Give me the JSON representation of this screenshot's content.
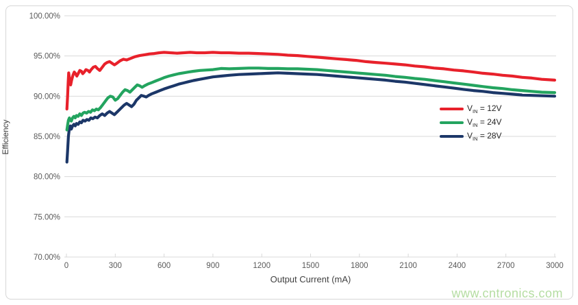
{
  "watermark": {
    "text": "www.cntronics.com",
    "color": "#b5dda2"
  },
  "colors": {
    "background": "#ffffff",
    "card_border": "#d6d6d6",
    "gridline": "#d9d9d9",
    "axis_text": "#595959",
    "title_text": "#404040",
    "legend_text": "#262626",
    "series_red": "#e8212b",
    "series_green": "#23a45f",
    "series_navy": "#1c3768"
  },
  "chart_data": {
    "type": "line",
    "title": "",
    "xlabel": "Output Current (mA)",
    "ylabel": "Efficiency",
    "xlim": [
      0,
      3000
    ],
    "ylim": [
      70,
      100
    ],
    "x_ticks": [
      0,
      300,
      600,
      900,
      1200,
      1500,
      1800,
      2100,
      2400,
      2700,
      3000
    ],
    "x_tick_labels": [
      "0",
      "300",
      "600",
      "900",
      "1200",
      "1500",
      "1800",
      "2100",
      "2400",
      "2700",
      "3000"
    ],
    "y_ticks": [
      70,
      75,
      80,
      85,
      90,
      95,
      100
    ],
    "y_tick_labels": [
      "70.00%",
      "75.00%",
      "80.00%",
      "85.00%",
      "90.00%",
      "95.00%",
      "100.00%"
    ],
    "grid": "horizontal-only",
    "legend_position": "inside-right-middle",
    "series": [
      {
        "id": "vin-12v",
        "legend_label": "VIN = 12V",
        "label_main": "V",
        "label_sub": "IN",
        "label_rest": " = 12V",
        "color": "#e8212b",
        "points": [
          [
            3,
            88.4
          ],
          [
            7,
            90.0
          ],
          [
            11,
            91.8
          ],
          [
            14,
            92.9
          ],
          [
            18,
            92.3
          ],
          [
            22,
            91.6
          ],
          [
            26,
            91.4
          ],
          [
            32,
            92.0
          ],
          [
            40,
            92.6
          ],
          [
            48,
            93.0
          ],
          [
            56,
            92.8
          ],
          [
            64,
            92.5
          ],
          [
            72,
            92.8
          ],
          [
            82,
            93.2
          ],
          [
            92,
            93.1
          ],
          [
            100,
            92.8
          ],
          [
            110,
            93.0
          ],
          [
            120,
            93.3
          ],
          [
            132,
            93.2
          ],
          [
            142,
            93.0
          ],
          [
            152,
            93.3
          ],
          [
            165,
            93.6
          ],
          [
            178,
            93.7
          ],
          [
            192,
            93.4
          ],
          [
            205,
            93.2
          ],
          [
            220,
            93.6
          ],
          [
            235,
            94.0
          ],
          [
            250,
            94.2
          ],
          [
            265,
            94.3
          ],
          [
            280,
            94.1
          ],
          [
            295,
            93.9
          ],
          [
            310,
            94.1
          ],
          [
            330,
            94.4
          ],
          [
            350,
            94.6
          ],
          [
            370,
            94.5
          ],
          [
            395,
            94.7
          ],
          [
            420,
            94.9
          ],
          [
            450,
            95.05
          ],
          [
            480,
            95.15
          ],
          [
            510,
            95.25
          ],
          [
            540,
            95.3
          ],
          [
            570,
            95.4
          ],
          [
            600,
            95.45
          ],
          [
            640,
            95.4
          ],
          [
            680,
            95.35
          ],
          [
            720,
            95.4
          ],
          [
            760,
            95.45
          ],
          [
            800,
            95.4
          ],
          [
            850,
            95.4
          ],
          [
            900,
            95.45
          ],
          [
            950,
            95.4
          ],
          [
            1000,
            95.4
          ],
          [
            1060,
            95.35
          ],
          [
            1120,
            95.35
          ],
          [
            1180,
            95.3
          ],
          [
            1240,
            95.25
          ],
          [
            1300,
            95.2
          ],
          [
            1360,
            95.1
          ],
          [
            1420,
            95.05
          ],
          [
            1480,
            94.95
          ],
          [
            1540,
            94.85
          ],
          [
            1600,
            94.75
          ],
          [
            1660,
            94.65
          ],
          [
            1720,
            94.55
          ],
          [
            1780,
            94.45
          ],
          [
            1840,
            94.3
          ],
          [
            1900,
            94.2
          ],
          [
            1960,
            94.1
          ],
          [
            2020,
            94.0
          ],
          [
            2080,
            93.9
          ],
          [
            2140,
            93.75
          ],
          [
            2200,
            93.65
          ],
          [
            2260,
            93.5
          ],
          [
            2320,
            93.4
          ],
          [
            2380,
            93.25
          ],
          [
            2440,
            93.15
          ],
          [
            2500,
            93.0
          ],
          [
            2560,
            92.85
          ],
          [
            2620,
            92.75
          ],
          [
            2680,
            92.6
          ],
          [
            2740,
            92.5
          ],
          [
            2800,
            92.35
          ],
          [
            2860,
            92.25
          ],
          [
            2920,
            92.1
          ],
          [
            3000,
            92.0
          ]
        ]
      },
      {
        "id": "vin-24v",
        "legend_label": "VIN = 24V",
        "label_main": "V",
        "label_sub": "IN",
        "label_rest": " = 24V",
        "color": "#23a45f",
        "points": [
          [
            3,
            85.8
          ],
          [
            7,
            86.4
          ],
          [
            12,
            87.0
          ],
          [
            18,
            87.3
          ],
          [
            24,
            87.0
          ],
          [
            30,
            86.9
          ],
          [
            38,
            87.3
          ],
          [
            46,
            87.5
          ],
          [
            54,
            87.3
          ],
          [
            62,
            87.6
          ],
          [
            72,
            87.5
          ],
          [
            82,
            87.8
          ],
          [
            92,
            87.6
          ],
          [
            102,
            87.9
          ],
          [
            112,
            88.0
          ],
          [
            124,
            87.9
          ],
          [
            136,
            88.1
          ],
          [
            148,
            88.0
          ],
          [
            160,
            88.3
          ],
          [
            172,
            88.2
          ],
          [
            184,
            88.4
          ],
          [
            196,
            88.3
          ],
          [
            210,
            88.6
          ],
          [
            225,
            89.0
          ],
          [
            240,
            89.4
          ],
          [
            255,
            89.8
          ],
          [
            270,
            90.0
          ],
          [
            285,
            89.9
          ],
          [
            300,
            89.5
          ],
          [
            315,
            89.7
          ],
          [
            330,
            90.1
          ],
          [
            345,
            90.5
          ],
          [
            360,
            90.8
          ],
          [
            375,
            90.7
          ],
          [
            390,
            90.5
          ],
          [
            405,
            90.8
          ],
          [
            420,
            91.1
          ],
          [
            435,
            91.4
          ],
          [
            450,
            91.3
          ],
          [
            465,
            91.1
          ],
          [
            480,
            91.3
          ],
          [
            500,
            91.5
          ],
          [
            525,
            91.7
          ],
          [
            550,
            91.9
          ],
          [
            575,
            92.1
          ],
          [
            600,
            92.3
          ],
          [
            630,
            92.5
          ],
          [
            660,
            92.65
          ],
          [
            690,
            92.8
          ],
          [
            720,
            92.9
          ],
          [
            750,
            93.0
          ],
          [
            780,
            93.1
          ],
          [
            820,
            93.2
          ],
          [
            860,
            93.25
          ],
          [
            900,
            93.3
          ],
          [
            950,
            93.45
          ],
          [
            1000,
            93.4
          ],
          [
            1060,
            93.45
          ],
          [
            1120,
            93.5
          ],
          [
            1180,
            93.5
          ],
          [
            1240,
            93.45
          ],
          [
            1300,
            93.45
          ],
          [
            1360,
            93.4
          ],
          [
            1420,
            93.4
          ],
          [
            1480,
            93.35
          ],
          [
            1540,
            93.3
          ],
          [
            1600,
            93.2
          ],
          [
            1660,
            93.1
          ],
          [
            1720,
            93.0
          ],
          [
            1780,
            92.9
          ],
          [
            1840,
            92.8
          ],
          [
            1900,
            92.7
          ],
          [
            1960,
            92.6
          ],
          [
            2020,
            92.45
          ],
          [
            2080,
            92.35
          ],
          [
            2140,
            92.2
          ],
          [
            2200,
            92.1
          ],
          [
            2260,
            91.95
          ],
          [
            2320,
            91.8
          ],
          [
            2380,
            91.65
          ],
          [
            2440,
            91.5
          ],
          [
            2500,
            91.35
          ],
          [
            2560,
            91.2
          ],
          [
            2620,
            91.05
          ],
          [
            2680,
            90.95
          ],
          [
            2740,
            90.8
          ],
          [
            2800,
            90.7
          ],
          [
            2860,
            90.6
          ],
          [
            2920,
            90.5
          ],
          [
            3000,
            90.45
          ]
        ]
      },
      {
        "id": "vin-28v",
        "legend_label": "VIN = 28V",
        "label_main": "V",
        "label_sub": "IN",
        "label_rest": " = 28V",
        "color": "#1c3768",
        "points": [
          [
            3,
            81.8
          ],
          [
            7,
            83.2
          ],
          [
            12,
            85.0
          ],
          [
            18,
            86.0
          ],
          [
            24,
            86.3
          ],
          [
            30,
            85.9
          ],
          [
            38,
            86.3
          ],
          [
            46,
            86.5
          ],
          [
            54,
            86.3
          ],
          [
            62,
            86.6
          ],
          [
            72,
            86.5
          ],
          [
            82,
            86.8
          ],
          [
            92,
            86.7
          ],
          [
            102,
            87.0
          ],
          [
            114,
            86.9
          ],
          [
            126,
            87.1
          ],
          [
            138,
            87.0
          ],
          [
            150,
            87.3
          ],
          [
            162,
            87.2
          ],
          [
            176,
            87.4
          ],
          [
            190,
            87.3
          ],
          [
            205,
            87.6
          ],
          [
            220,
            87.8
          ],
          [
            235,
            87.6
          ],
          [
            250,
            87.9
          ],
          [
            265,
            88.1
          ],
          [
            280,
            87.9
          ],
          [
            295,
            87.7
          ],
          [
            310,
            88.0
          ],
          [
            325,
            88.3
          ],
          [
            340,
            88.6
          ],
          [
            355,
            88.9
          ],
          [
            370,
            89.1
          ],
          [
            385,
            88.9
          ],
          [
            400,
            88.7
          ],
          [
            415,
            89.0
          ],
          [
            430,
            89.5
          ],
          [
            445,
            89.8
          ],
          [
            460,
            90.1
          ],
          [
            475,
            90.0
          ],
          [
            490,
            89.9
          ],
          [
            505,
            90.1
          ],
          [
            525,
            90.3
          ],
          [
            550,
            90.5
          ],
          [
            575,
            90.7
          ],
          [
            600,
            90.9
          ],
          [
            630,
            91.1
          ],
          [
            660,
            91.3
          ],
          [
            690,
            91.5
          ],
          [
            720,
            91.65
          ],
          [
            750,
            91.8
          ],
          [
            780,
            91.95
          ],
          [
            820,
            92.1
          ],
          [
            860,
            92.25
          ],
          [
            900,
            92.4
          ],
          [
            950,
            92.5
          ],
          [
            1000,
            92.6
          ],
          [
            1060,
            92.7
          ],
          [
            1120,
            92.75
          ],
          [
            1180,
            92.8
          ],
          [
            1240,
            92.85
          ],
          [
            1300,
            92.9
          ],
          [
            1360,
            92.85
          ],
          [
            1420,
            92.8
          ],
          [
            1480,
            92.75
          ],
          [
            1540,
            92.7
          ],
          [
            1600,
            92.6
          ],
          [
            1660,
            92.5
          ],
          [
            1720,
            92.4
          ],
          [
            1780,
            92.3
          ],
          [
            1840,
            92.2
          ],
          [
            1900,
            92.1
          ],
          [
            1960,
            92.0
          ],
          [
            2020,
            91.85
          ],
          [
            2080,
            91.75
          ],
          [
            2140,
            91.6
          ],
          [
            2200,
            91.45
          ],
          [
            2260,
            91.3
          ],
          [
            2320,
            91.15
          ],
          [
            2380,
            91.0
          ],
          [
            2440,
            90.85
          ],
          [
            2500,
            90.7
          ],
          [
            2560,
            90.6
          ],
          [
            2620,
            90.45
          ],
          [
            2680,
            90.35
          ],
          [
            2740,
            90.25
          ],
          [
            2800,
            90.15
          ],
          [
            2860,
            90.1
          ],
          [
            2920,
            90.05
          ],
          [
            3000,
            90.0
          ]
        ]
      }
    ]
  }
}
